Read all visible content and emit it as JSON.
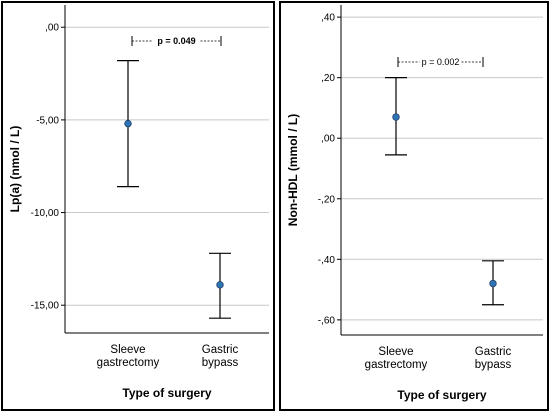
{
  "chart_data": [
    {
      "type": "errorbar",
      "xlabel": "Type of surgery",
      "ylabel": "Lp(a) (nmol / L)",
      "categories": [
        "Sleeve\ngastrectomy",
        "Gastric\nbypass"
      ],
      "means": [
        -5.2,
        -13.9
      ],
      "lower": [
        -8.6,
        -15.7
      ],
      "upper": [
        -1.8,
        -12.2
      ],
      "ylim": [
        -16.5,
        1.2
      ],
      "yticks": [
        0,
        -5,
        -10,
        -15
      ],
      "ytick_labels": [
        ",00",
        "-5,00",
        "-10,00",
        "-15,00"
      ],
      "grid": "horizontal",
      "annotation": "p = 0.049",
      "annotation_bold": true,
      "marker_color": "#2e75b6"
    },
    {
      "type": "errorbar",
      "xlabel": "Type of surgery",
      "ylabel": "Non-HDL (mmol / L)",
      "categories": [
        "Sleeve\ngastrectomy",
        "Gastric\nbypass"
      ],
      "means": [
        0.07,
        -0.48
      ],
      "lower": [
        -0.055,
        -0.55
      ],
      "upper": [
        0.2,
        -0.405
      ],
      "ylim": [
        -0.65,
        0.44
      ],
      "yticks": [
        0.4,
        0.2,
        0.0,
        -0.2,
        -0.4,
        -0.6
      ],
      "ytick_labels": [
        ",40",
        ",20",
        ",00",
        "-,20",
        "-,40",
        "-,60"
      ],
      "grid": "horizontal",
      "annotation": "p = 0.002",
      "annotation_bold": false,
      "marker_color": "#2e75b6"
    }
  ]
}
